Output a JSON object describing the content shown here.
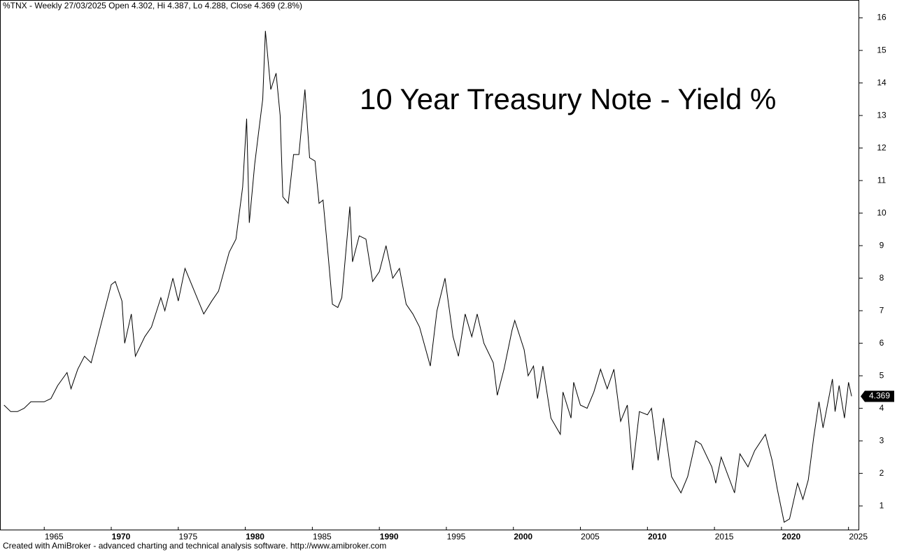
{
  "chart_data": {
    "type": "line",
    "header": "%TNX - Weekly 27/03/2025 Open 4.302, Hi 4.387, Lo 4.288, Close 4.369 (2.8%)",
    "title": "10 Year Treasury Note - Yield %",
    "footer": "Created with AmiBroker - advanced charting and technical analysis software. http://www.amibroker.com",
    "last_value": 4.369,
    "color": "#000000",
    "x": [
      1962.0,
      1962.5,
      1963.0,
      1963.5,
      1964.0,
      1964.5,
      1965.0,
      1965.5,
      1966.0,
      1966.7,
      1967.0,
      1967.5,
      1968.0,
      1968.5,
      1969.0,
      1969.5,
      1970.0,
      1970.3,
      1970.8,
      1971.0,
      1971.5,
      1971.8,
      1972.5,
      1973.0,
      1973.7,
      1974.0,
      1974.6,
      1975.0,
      1975.5,
      1976.0,
      1976.9,
      1977.5,
      1978.0,
      1978.8,
      1979.3,
      1979.8,
      1980.1,
      1980.3,
      1980.7,
      1981.0,
      1981.3,
      1981.5,
      1981.9,
      1982.3,
      1982.6,
      1982.8,
      1983.2,
      1983.6,
      1984.0,
      1984.45,
      1984.8,
      1985.2,
      1985.5,
      1985.8,
      1986.2,
      1986.5,
      1986.9,
      1987.2,
      1987.8,
      1988.0,
      1988.5,
      1989.0,
      1989.5,
      1990.0,
      1990.5,
      1991.0,
      1991.5,
      1992.0,
      1992.5,
      1993.0,
      1993.8,
      1994.3,
      1994.9,
      1995.5,
      1995.9,
      1996.4,
      1996.9,
      1997.3,
      1997.8,
      1998.5,
      1998.8,
      1999.3,
      1999.9,
      2000.1,
      2000.8,
      2001.1,
      2001.5,
      2001.8,
      2002.2,
      2002.8,
      2003.5,
      2003.7,
      2004.3,
      2004.5,
      2005.0,
      2005.5,
      2006.0,
      2006.5,
      2007.0,
      2007.5,
      2008.0,
      2008.5,
      2008.9,
      2009.4,
      2010.0,
      2010.3,
      2010.8,
      2011.2,
      2011.8,
      2012.5,
      2013.0,
      2013.6,
      2014.0,
      2014.8,
      2015.1,
      2015.5,
      2016.5,
      2016.9,
      2017.5,
      2018.0,
      2018.8,
      2019.3,
      2019.7,
      2020.2,
      2020.6,
      2021.2,
      2021.6,
      2022.0,
      2022.4,
      2022.8,
      2023.1,
      2023.8,
      2024.0,
      2024.3,
      2024.7,
      2025.0,
      2025.23
    ],
    "values": [
      4.1,
      3.9,
      3.9,
      4.0,
      4.2,
      4.2,
      4.2,
      4.3,
      4.7,
      5.1,
      4.6,
      5.2,
      5.6,
      5.4,
      6.2,
      7.0,
      7.8,
      7.9,
      7.3,
      6.0,
      6.9,
      5.6,
      6.2,
      6.5,
      7.4,
      7.0,
      8.0,
      7.3,
      8.3,
      7.8,
      6.9,
      7.3,
      7.6,
      8.8,
      9.2,
      10.8,
      12.9,
      9.7,
      11.5,
      12.5,
      13.5,
      15.6,
      13.8,
      14.3,
      13.0,
      10.5,
      10.3,
      11.8,
      11.8,
      13.8,
      11.7,
      11.6,
      10.3,
      10.4,
      8.6,
      7.2,
      7.1,
      7.4,
      10.2,
      8.5,
      9.3,
      9.2,
      7.9,
      8.2,
      9.0,
      8.0,
      8.3,
      7.2,
      6.9,
      6.5,
      5.3,
      7.0,
      8.0,
      6.2,
      5.6,
      6.9,
      6.2,
      6.9,
      6.0,
      5.4,
      4.4,
      5.2,
      6.4,
      6.7,
      5.8,
      5.0,
      5.3,
      4.3,
      5.3,
      3.7,
      3.2,
      4.5,
      3.7,
      4.8,
      4.1,
      4.0,
      4.5,
      5.2,
      4.6,
      5.2,
      3.6,
      4.1,
      2.1,
      3.9,
      3.8,
      4.0,
      2.4,
      3.7,
      1.9,
      1.4,
      1.9,
      3.0,
      2.9,
      2.2,
      1.7,
      2.5,
      1.4,
      2.6,
      2.2,
      2.7,
      3.2,
      2.4,
      1.5,
      0.5,
      0.6,
      1.7,
      1.2,
      1.8,
      3.1,
      4.2,
      3.4,
      4.9,
      3.9,
      4.7,
      3.7,
      4.8,
      4.37
    ],
    "xlim": [
      1961.7,
      2025.8
    ],
    "ylim": [
      0.25,
      16.55
    ],
    "xticks": [
      1965,
      1970,
      1975,
      1980,
      1985,
      1990,
      1995,
      2000,
      2005,
      2010,
      2015,
      2020,
      2025
    ],
    "yticks": [
      1,
      2,
      3,
      4,
      5,
      6,
      7,
      8,
      9,
      10,
      11,
      12,
      13,
      14,
      15,
      16
    ]
  }
}
